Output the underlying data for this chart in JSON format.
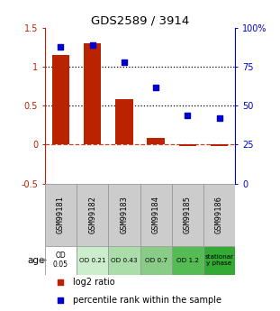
{
  "title": "GDS2589 / 3914",
  "samples": [
    "GSM99181",
    "GSM99182",
    "GSM99183",
    "GSM99184",
    "GSM99185",
    "GSM99186"
  ],
  "log2_ratio": [
    1.15,
    1.3,
    0.58,
    0.09,
    -0.02,
    -0.02
  ],
  "percentile_rank": [
    88,
    89,
    78,
    62,
    44,
    42
  ],
  "bar_color": "#bb2200",
  "dot_color": "#0000cc",
  "left_ylim": [
    -0.5,
    1.5
  ],
  "right_ylim": [
    0,
    100
  ],
  "left_yticks": [
    -0.5,
    0,
    0.5,
    1.0,
    1.5
  ],
  "right_yticks": [
    0,
    25,
    50,
    75,
    100
  ],
  "right_yticklabels": [
    "0",
    "25",
    "50",
    "75",
    "100%"
  ],
  "hlines": [
    0.5,
    1.0
  ],
  "age_labels": [
    "OD\n0.05",
    "OD 0.21",
    "OD 0.43",
    "OD 0.7",
    "OD 1.2",
    "stationar\ny phase"
  ],
  "age_colors": [
    "#ffffff",
    "#cceecc",
    "#aaddaa",
    "#88cc88",
    "#55bb55",
    "#33aa33"
  ],
  "sample_box_color": "#cccccc",
  "legend_items": [
    "log2 ratio",
    "percentile rank within the sample"
  ],
  "legend_colors": [
    "#bb2200",
    "#0000cc"
  ],
  "bg_color": "#ffffff"
}
